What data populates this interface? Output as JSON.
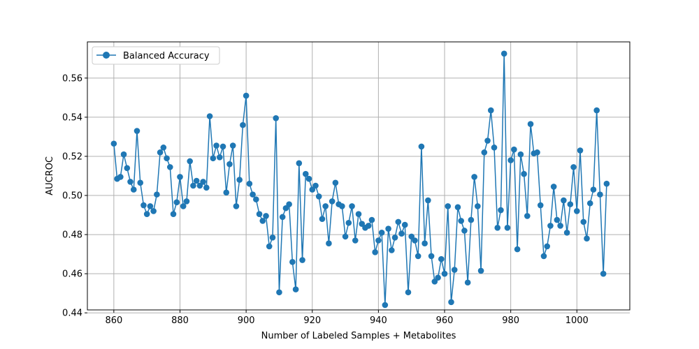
{
  "chart_data": {
    "type": "line",
    "xlabel": "Number of Labeled Samples + Metabolites",
    "ylabel": "AUCROC",
    "xlim": [
      852,
      1016
    ],
    "ylim": [
      0.4415,
      0.5785
    ],
    "xticks": [
      860,
      880,
      900,
      920,
      940,
      960,
      980,
      1000
    ],
    "yticks": [
      0.44,
      0.46,
      0.48,
      0.5,
      0.52,
      0.54,
      0.56
    ],
    "xtick_labels": [
      "860",
      "880",
      "900",
      "920",
      "940",
      "960",
      "980",
      "1000"
    ],
    "ytick_labels": [
      "0.44",
      "0.46",
      "0.48",
      "0.50",
      "0.52",
      "0.54",
      "0.56"
    ],
    "grid": true,
    "legend_position": "top-left",
    "color": "#1f77b4",
    "series": [
      {
        "name": "Balanced Accuracy",
        "x": [
          860,
          861,
          862,
          863,
          864,
          865,
          866,
          867,
          868,
          869,
          870,
          871,
          872,
          873,
          874,
          875,
          876,
          877,
          878,
          879,
          880,
          881,
          882,
          883,
          884,
          885,
          886,
          887,
          888,
          889,
          890,
          891,
          892,
          893,
          894,
          895,
          896,
          897,
          898,
          899,
          900,
          901,
          902,
          903,
          904,
          905,
          906,
          907,
          908,
          909,
          910,
          911,
          912,
          913,
          914,
          915,
          916,
          917,
          918,
          919,
          920,
          921,
          922,
          923,
          924,
          925,
          926,
          927,
          928,
          929,
          930,
          931,
          932,
          933,
          934,
          935,
          936,
          937,
          938,
          939,
          940,
          941,
          942,
          943,
          944,
          945,
          946,
          947,
          948,
          949,
          950,
          951,
          952,
          953,
          954,
          955,
          956,
          957,
          958,
          959,
          960,
          961,
          962,
          963,
          964,
          965,
          966,
          967,
          968,
          969,
          970,
          971,
          972,
          973,
          974,
          975,
          976,
          977,
          978,
          979,
          980,
          981,
          982,
          983,
          984,
          985,
          986,
          987,
          988,
          989,
          990,
          991,
          992,
          993,
          994,
          995,
          996,
          997,
          998,
          999,
          1000,
          1001,
          1002,
          1003,
          1004,
          1005,
          1006,
          1007,
          1008,
          1009
        ],
        "y": [
          0.5265,
          0.5085,
          0.5095,
          0.521,
          0.514,
          0.507,
          0.503,
          0.533,
          0.5065,
          0.495,
          0.4905,
          0.4945,
          0.492,
          0.5005,
          0.522,
          0.5245,
          0.519,
          0.5145,
          0.4905,
          0.4965,
          0.5095,
          0.4945,
          0.497,
          0.5175,
          0.505,
          0.5075,
          0.505,
          0.507,
          0.504,
          0.5405,
          0.519,
          0.5255,
          0.5195,
          0.525,
          0.5015,
          0.516,
          0.5255,
          0.4945,
          0.508,
          0.536,
          0.551,
          0.506,
          0.5005,
          0.498,
          0.4905,
          0.487,
          0.4895,
          0.474,
          0.4785,
          0.5395,
          0.4505,
          0.489,
          0.4935,
          0.4955,
          0.466,
          0.452,
          0.5165,
          0.467,
          0.511,
          0.5085,
          0.503,
          0.505,
          0.4995,
          0.488,
          0.4945,
          0.4755,
          0.497,
          0.5065,
          0.4955,
          0.4945,
          0.479,
          0.486,
          0.4945,
          0.477,
          0.4905,
          0.4855,
          0.4835,
          0.4845,
          0.4875,
          0.471,
          0.477,
          0.481,
          0.444,
          0.483,
          0.472,
          0.4785,
          0.4865,
          0.4805,
          0.485,
          0.4505,
          0.479,
          0.477,
          0.469,
          0.525,
          0.4755,
          0.4975,
          0.469,
          0.456,
          0.458,
          0.4675,
          0.46,
          0.4945,
          0.4455,
          0.462,
          0.494,
          0.487,
          0.482,
          0.4555,
          0.4875,
          0.5095,
          0.4945,
          0.4615,
          0.522,
          0.528,
          0.5435,
          0.5245,
          0.4835,
          0.4925,
          0.5725,
          0.4835,
          0.518,
          0.5235,
          0.4725,
          0.521,
          0.511,
          0.4895,
          0.5365,
          0.5215,
          0.522,
          0.495,
          0.469,
          0.474,
          0.4845,
          0.5045,
          0.4875,
          0.4845,
          0.4975,
          0.481,
          0.4955,
          0.5145,
          0.492,
          0.523,
          0.4865,
          0.478,
          0.496,
          0.503,
          0.5435,
          0.5005,
          0.46,
          0.506
        ]
      }
    ]
  }
}
